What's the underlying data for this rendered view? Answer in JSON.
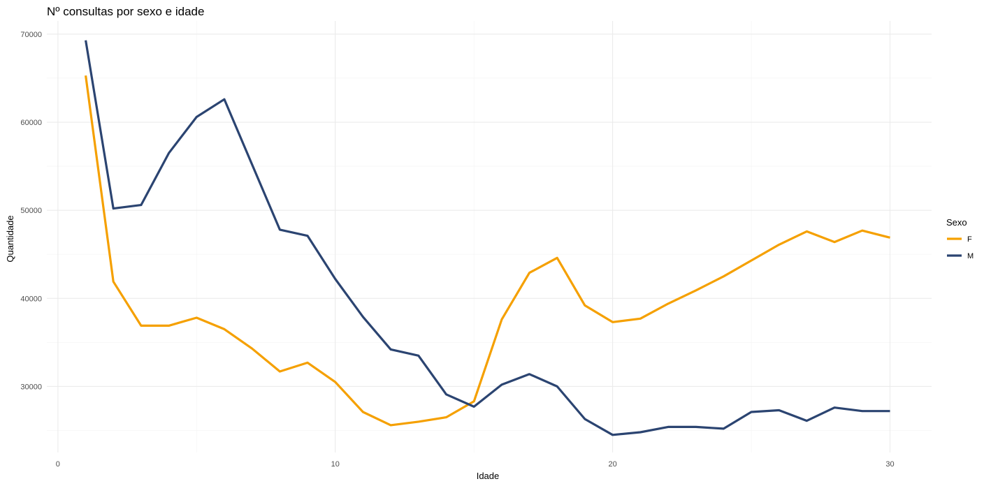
{
  "chart_data": {
    "type": "line",
    "title": "Nº consultas por sexo e idade",
    "xlabel": "Idade",
    "ylabel": "Quantidade",
    "xlim": [
      -0.4,
      31.5
    ],
    "ylim": [
      22500,
      71500
    ],
    "x_ticks": [
      0,
      10,
      20,
      30
    ],
    "y_ticks": [
      30000,
      40000,
      50000,
      60000,
      70000
    ],
    "grid": true,
    "legend": {
      "title": "Sexo",
      "position": "right"
    },
    "x": [
      1,
      2,
      3,
      4,
      5,
      6,
      7,
      8,
      9,
      10,
      11,
      12,
      13,
      14,
      15,
      16,
      17,
      18,
      19,
      20,
      21,
      22,
      23,
      24,
      25,
      26,
      27,
      28,
      29,
      30
    ],
    "series": [
      {
        "name": "F",
        "color": "#F5A000",
        "values": [
          65300,
          41900,
          36900,
          36900,
          37800,
          36500,
          34300,
          31700,
          32700,
          30500,
          27100,
          25600,
          26000,
          26500,
          28300,
          37600,
          42900,
          44600,
          39200,
          37300,
          37700,
          39400,
          40900,
          42500,
          44300,
          46100,
          47600,
          46400,
          47700,
          46900
        ]
      },
      {
        "name": "M",
        "color": "#2B4471",
        "values": [
          69300,
          50200,
          50600,
          56500,
          60600,
          62600,
          55200,
          47800,
          47100,
          42200,
          37900,
          34200,
          33500,
          29100,
          27700,
          30200,
          31400,
          30000,
          26300,
          24500,
          24800,
          25400,
          25400,
          25200,
          27100,
          27300,
          26100,
          27600,
          27200,
          27200
        ]
      }
    ]
  }
}
